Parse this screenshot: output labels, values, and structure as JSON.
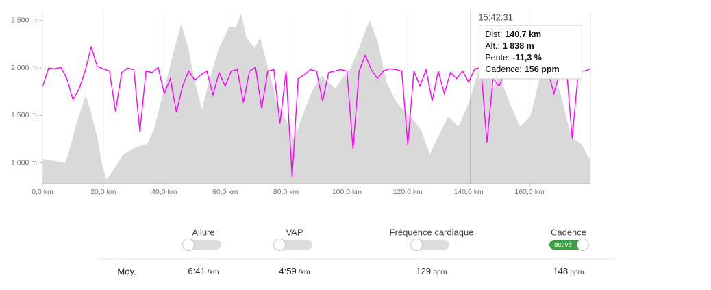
{
  "chart_data": {
    "type": "area",
    "series": [
      {
        "name": "Altitude",
        "type": "area",
        "color": "#d9d9d9",
        "x": [
          0,
          7.4,
          8.5,
          11.2,
          14.2,
          15.7,
          18,
          19.8,
          21,
          23,
          26.5,
          31,
          34.4,
          36.6,
          40,
          43.4,
          45.6,
          47.9,
          50.1,
          52.4,
          54.6,
          58,
          61.3,
          63.6,
          65.2,
          67,
          69.7,
          71.5,
          74.2,
          77.1,
          80.4,
          82.7,
          84.9,
          88.3,
          91.7,
          93.9,
          96.2,
          98.4,
          101.1,
          104,
          107.4,
          110.1,
          113,
          116.4,
          120.9,
          124.3,
          127.2,
          129.9,
          133.3,
          136.6,
          140,
          143.4,
          145.6,
          147.9,
          150.1,
          153.5,
          156.9,
          160.2,
          163.6,
          167,
          170.3,
          173.7,
          177,
          179.8
        ],
        "values": [
          1040,
          1000,
          1090,
          1420,
          1710,
          1560,
          1270,
          950,
          830,
          910,
          1090,
          1170,
          1200,
          1350,
          1780,
          2210,
          2460,
          2210,
          1850,
          1560,
          1850,
          2210,
          2430,
          2430,
          2570,
          2320,
          2210,
          2320,
          1990,
          1630,
          1420,
          1240,
          1450,
          1740,
          1920,
          1850,
          1780,
          1890,
          1990,
          2210,
          2500,
          2280,
          1850,
          1630,
          1490,
          1350,
          1090,
          1270,
          1490,
          1380,
          1630,
          1990,
          2210,
          1780,
          1920,
          1630,
          1380,
          1490,
          1920,
          2070,
          1710,
          1270,
          1200,
          1040
        ]
      },
      {
        "name": "Cadence",
        "type": "line",
        "color": "#ff00ff",
        "axis": "y2",
        "x": [
          0,
          2,
          4,
          6,
          8,
          10,
          12,
          14,
          16,
          18,
          20,
          22,
          24,
          26,
          28,
          30,
          32,
          34,
          36,
          38,
          40,
          42,
          44,
          46,
          48,
          50,
          52,
          54,
          56,
          58,
          60,
          62,
          64,
          66,
          68,
          70,
          72,
          74,
          76,
          78,
          80,
          82,
          84,
          86,
          88,
          90,
          92,
          94,
          96,
          98,
          100,
          102,
          104,
          106,
          108,
          110,
          112,
          114,
          116,
          118,
          120,
          122,
          124,
          126,
          128,
          130,
          132,
          134,
          136,
          138,
          140,
          142,
          144,
          146,
          148,
          150,
          152,
          154,
          156,
          158,
          160,
          162,
          164,
          166,
          168,
          170,
          172,
          174,
          176,
          178,
          180
        ],
        "values": [
          129,
          154,
          153,
          155,
          140,
          112,
          126,
          150,
          182,
          156,
          153,
          150,
          96,
          148,
          154,
          152,
          69,
          150,
          148,
          155,
          120,
          140,
          95,
          130,
          150,
          138,
          145,
          150,
          118,
          148,
          130,
          150,
          152,
          108,
          150,
          155,
          100,
          150,
          152,
          80,
          150,
          9,
          140,
          145,
          152,
          150,
          110,
          148,
          150,
          152,
          150,
          46,
          150,
          171,
          152,
          140,
          150,
          153,
          152,
          150,
          52,
          150,
          130,
          152,
          110,
          150,
          120,
          148,
          140,
          150,
          135,
          153,
          155,
          55,
          140,
          130,
          150,
          155,
          150,
          160,
          150,
          152,
          140,
          150,
          120,
          150,
          160,
          60,
          150,
          150,
          153
        ]
      }
    ],
    "xlim": [
      0,
      180
    ],
    "xticks": [
      {
        "value": 0,
        "label": "0,0 km"
      },
      {
        "value": 20,
        "label": "20,0 km"
      },
      {
        "value": 40,
        "label": "40,0 km"
      },
      {
        "value": 60,
        "label": "60,0 km"
      },
      {
        "value": 80,
        "label": "80,0 km"
      },
      {
        "value": 100,
        "label": "100,0 km"
      },
      {
        "value": 120,
        "label": "120,0 km"
      },
      {
        "value": 140,
        "label": "140,0 km"
      },
      {
        "value": 160,
        "label": "160,0 km"
      }
    ],
    "ylim": [
      780,
      2600
    ],
    "yticks": [
      {
        "value": 1000,
        "label": "1 000 m"
      },
      {
        "value": 1500,
        "label": "1 500 m"
      },
      {
        "value": 2000,
        "label": "2 000 m"
      },
      {
        "value": 2500,
        "label": "2 500 m"
      }
    ],
    "y2lim": [
      0,
      230
    ],
    "grid": true,
    "cursor_km": 140.7,
    "tooltip": {
      "time": "15:42:31",
      "rows": [
        {
          "label": "Dist:",
          "value": "140,7 km"
        },
        {
          "label": "Alt.:",
          "value": "1 838 m"
        },
        {
          "label": "Pente:",
          "value": "-11,3 %"
        },
        {
          "label": "Cadence:",
          "value": "156 ppm"
        }
      ]
    }
  },
  "panel": {
    "toggles": [
      {
        "label": "Allure"
      },
      {
        "label": "VAP"
      },
      {
        "label": "Fréquence cardiaque"
      },
      {
        "label": "Cadence",
        "state": "activé"
      }
    ],
    "averages": {
      "label": "Moy.",
      "items": [
        {
          "value": "6:41",
          "unit": "/km"
        },
        {
          "value": "4:59",
          "unit": "/km"
        },
        {
          "value": "129",
          "unit": "bpm"
        },
        {
          "value": "148",
          "unit": "ppm"
        }
      ]
    }
  }
}
